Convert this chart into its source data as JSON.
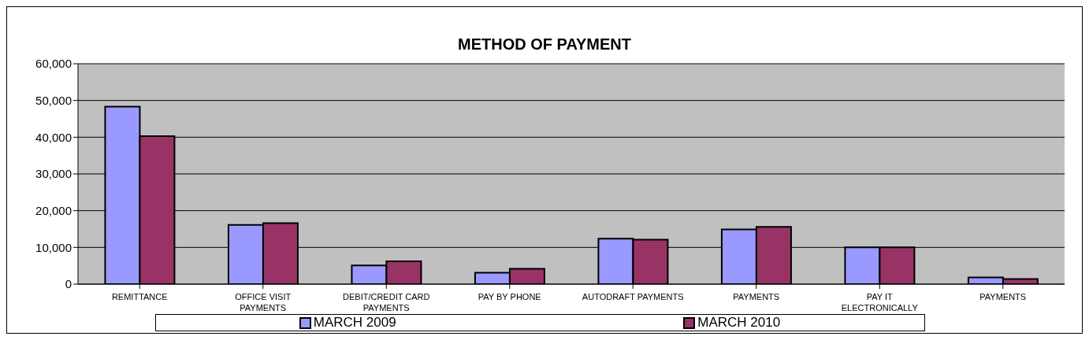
{
  "chart_data": {
    "type": "bar",
    "title": "METHOD OF PAYMENT",
    "categories": [
      "REMITTANCE",
      "OFFICE VISIT PAYMENTS",
      "DEBIT/CREDIT CARD PAYMENTS",
      "PAY BY PHONE",
      "AUTODRAFT PAYMENTS",
      "PAYMENTS",
      "PAY IT ELECTRONICALLY",
      "PAYMENTS"
    ],
    "series": [
      {
        "name": "MARCH 2009",
        "color": "#9999ff",
        "values": [
          48300,
          16100,
          5100,
          3100,
          12400,
          14900,
          10000,
          1800
        ]
      },
      {
        "name": "MARCH 2010",
        "color": "#993366",
        "values": [
          40300,
          16600,
          6200,
          4200,
          12100,
          15600,
          10000,
          1400
        ]
      }
    ],
    "ylim": [
      0,
      60000
    ],
    "yticks": [
      0,
      {
        "value": 10000,
        "label": "10,000"
      },
      {
        "value": 20000,
        "label": "20,000"
      },
      {
        "value": 30000,
        "label": "30,000"
      },
      {
        "value": 40000,
        "label": "40,000"
      },
      {
        "value": 50000,
        "label": "50,000"
      },
      {
        "value": 60000,
        "label": "60,000"
      }
    ],
    "grid": "y",
    "legend": "bottom"
  }
}
